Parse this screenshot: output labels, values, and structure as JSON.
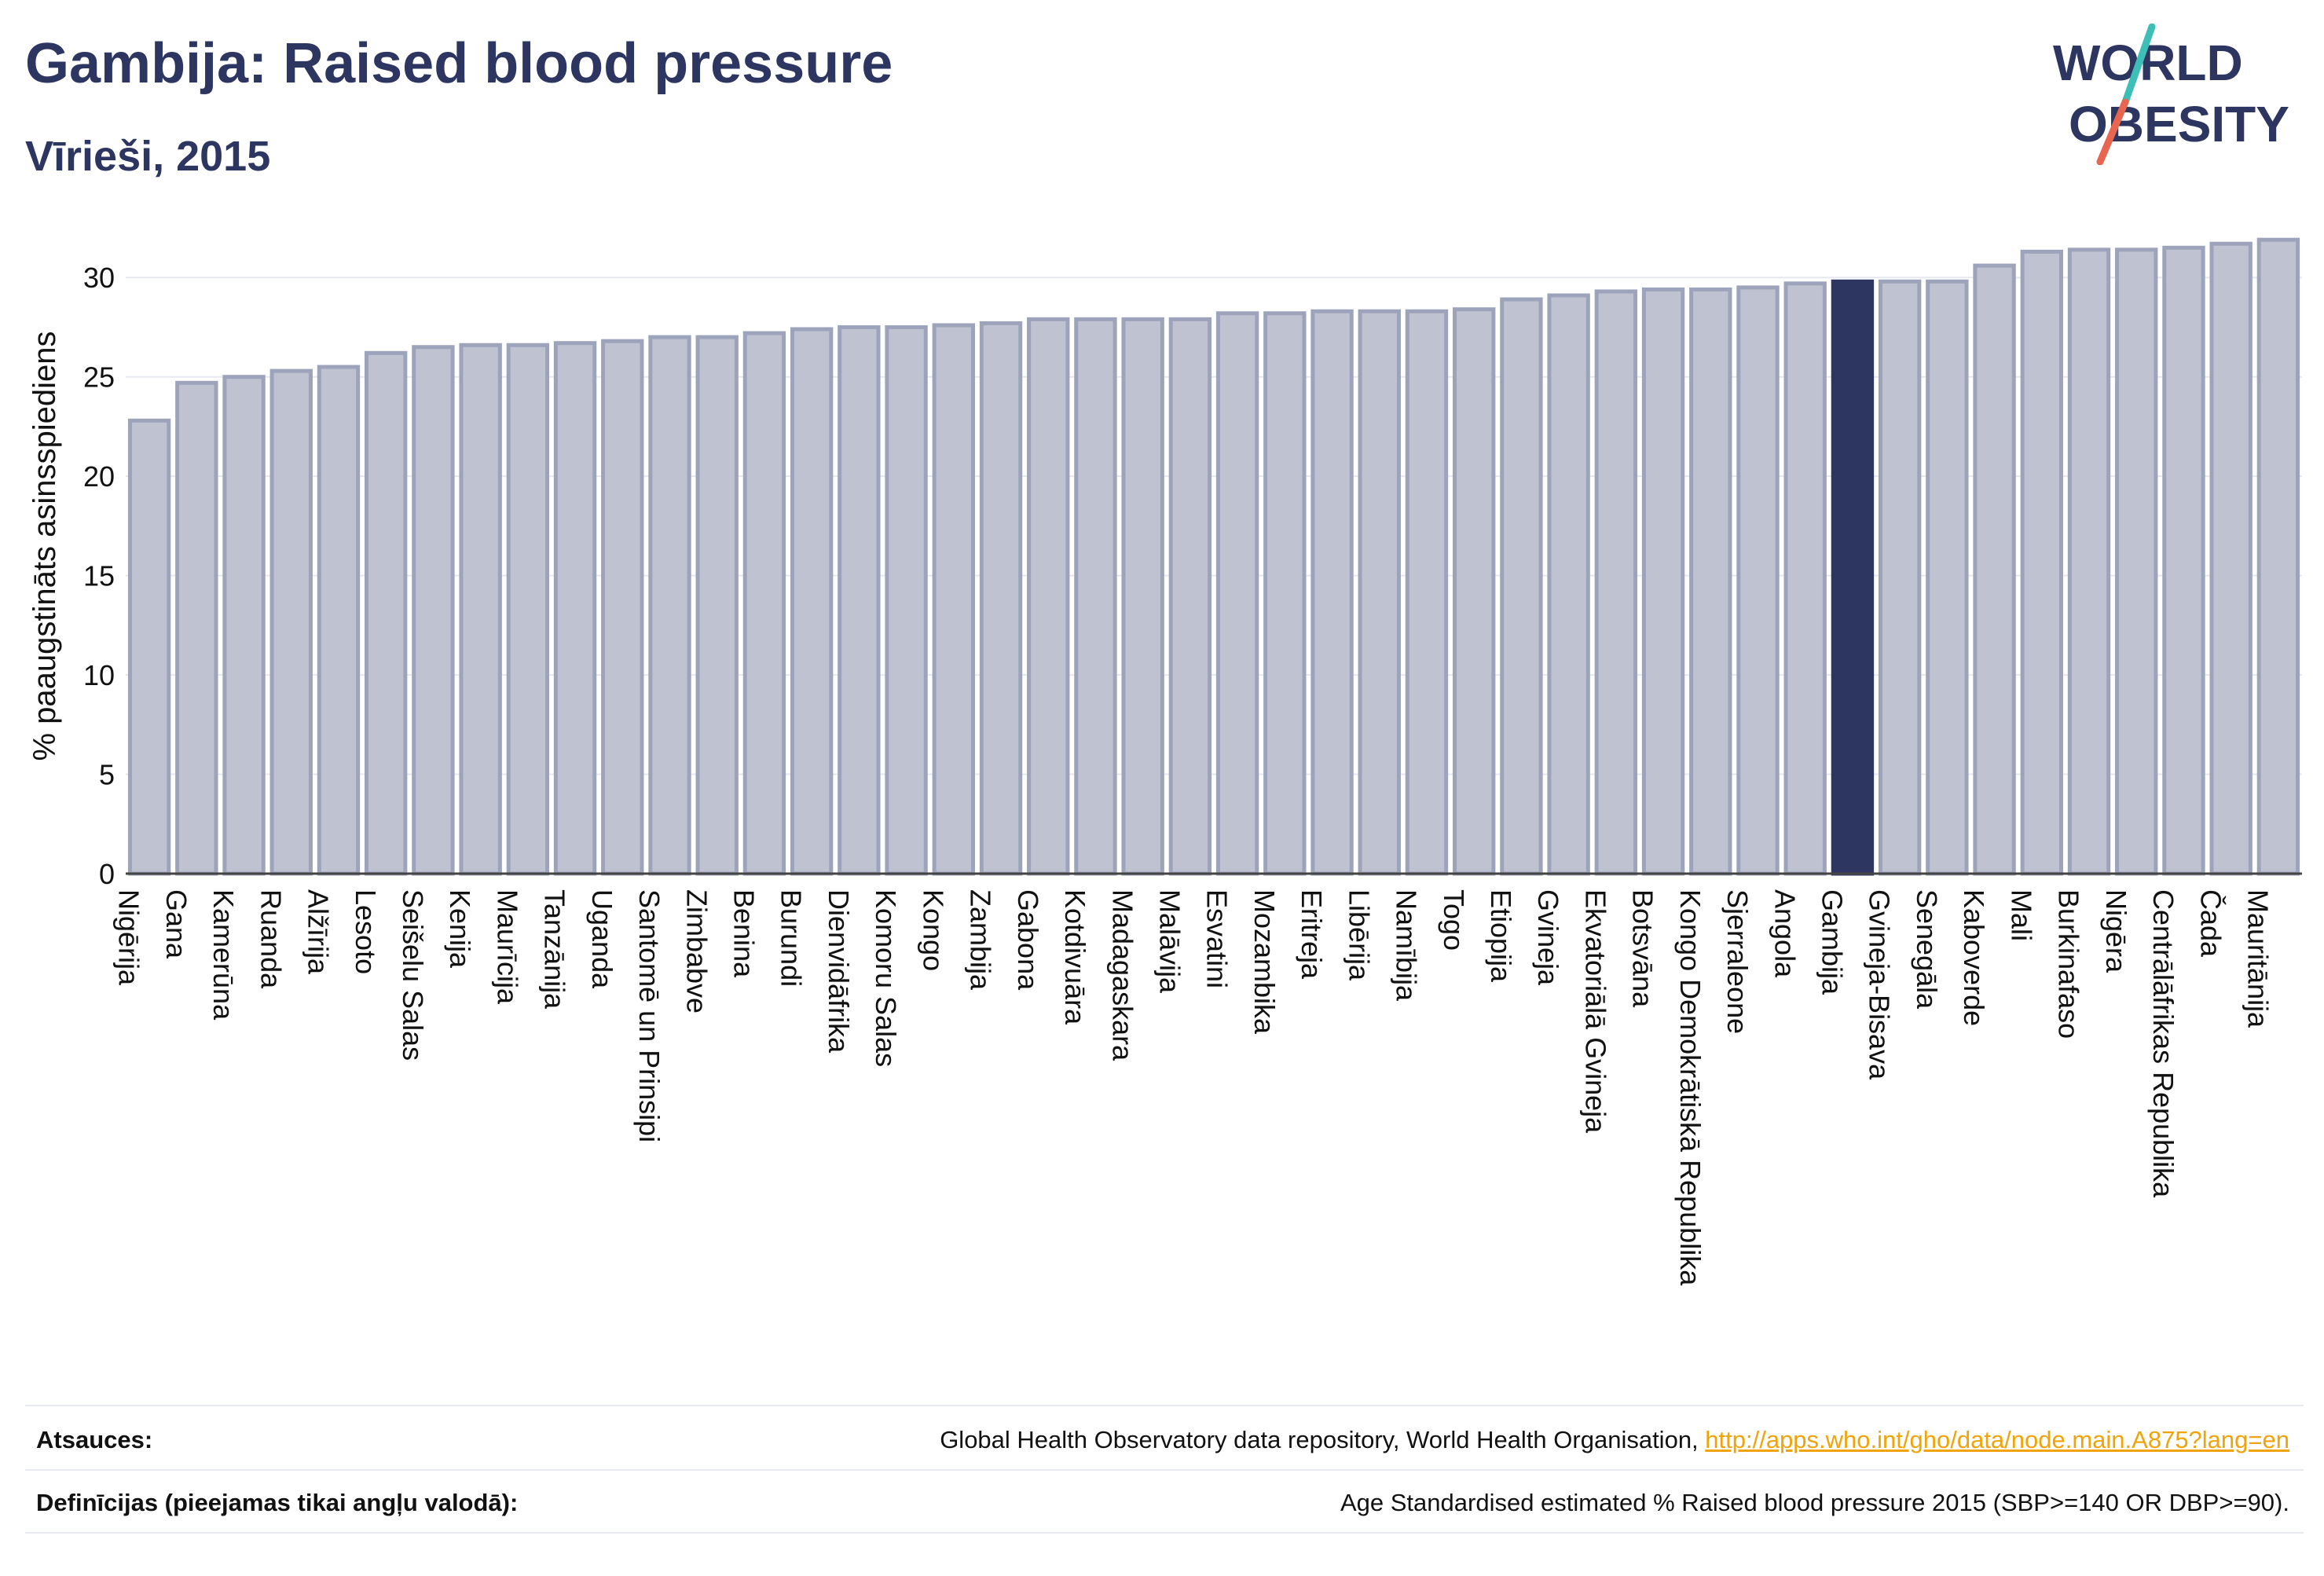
{
  "header": {
    "title": "Gambija: Raised blood pressure",
    "subtitle": "Vīrieši, 2015"
  },
  "logo": {
    "line1": "WORLD",
    "line2": "OBESITY",
    "text_color": "#2d3561",
    "slash_colors": [
      "#3dbfb8",
      "#e8664f"
    ]
  },
  "chart_data": {
    "type": "bar",
    "ylabel": "% paaugstināts asinsspiediens",
    "ylim": [
      0,
      32.5
    ],
    "yticks": [
      0,
      5,
      10,
      15,
      20,
      25,
      30
    ],
    "grid": true,
    "highlight": "Gambija",
    "colors": {
      "bar": "#bfc2d0",
      "bar_edge": "#9da3bb",
      "highlight": "#2d3561",
      "grid": "#e6e8ef"
    },
    "categories": [
      "Nigērija",
      "Gana",
      "Kamerūna",
      "Ruanda",
      "Alžīrija",
      "Lesoto",
      "Seišelu Salas",
      "Kenija",
      "Maurīcija",
      "Tanzānija",
      "Uganda",
      "Santomē un Prinsipi",
      "Zimbabve",
      "Benina",
      "Burundi",
      "Dienvidāfrika",
      "Komoru Salas",
      "Kongo",
      "Zambija",
      "Gabona",
      "Kotdivuāra",
      "Madagaskara",
      "Malāvija",
      "Esvatini",
      "Mozambika",
      "Eritreja",
      "Libērija",
      "Namībija",
      "Togo",
      "Etiopija",
      "Gvineja",
      "Ekvatoriālā Gvineja",
      "Botsvāna",
      "Kongo Demokrātiskā Republika",
      "Sjerraleone",
      "Angola",
      "Gambija",
      "Gvineja-Bisava",
      "Senegāla",
      "Kaboverde",
      "Mali",
      "Burkinafaso",
      "Nigēra",
      "Centrālāfrikas Republika",
      "Čada",
      "Mauritānija"
    ],
    "values": [
      22.8,
      24.7,
      25.0,
      25.3,
      25.5,
      26.2,
      26.5,
      26.6,
      26.6,
      26.7,
      26.8,
      27.0,
      27.0,
      27.2,
      27.4,
      27.5,
      27.5,
      27.6,
      27.7,
      27.9,
      27.9,
      27.9,
      27.9,
      28.2,
      28.2,
      28.3,
      28.3,
      28.3,
      28.4,
      28.9,
      29.1,
      29.3,
      29.4,
      29.4,
      29.5,
      29.7,
      29.8,
      29.8,
      29.8,
      30.6,
      31.3,
      31.4,
      31.4,
      31.5,
      31.7,
      31.9
    ]
  },
  "footer": {
    "sources_label": "Atsauces:",
    "sources_text": "Global Health Observatory data repository, World Health Organisation, ",
    "sources_link": "http://apps.who.int/gho/data/node.main.A875?lang=en",
    "definitions_label": "Definīcijas (pieejamas tikai angļu valodā):",
    "definitions_text": "Age Standardised estimated % Raised blood pressure 2015 (SBP>=140 OR DBP>=90)."
  }
}
